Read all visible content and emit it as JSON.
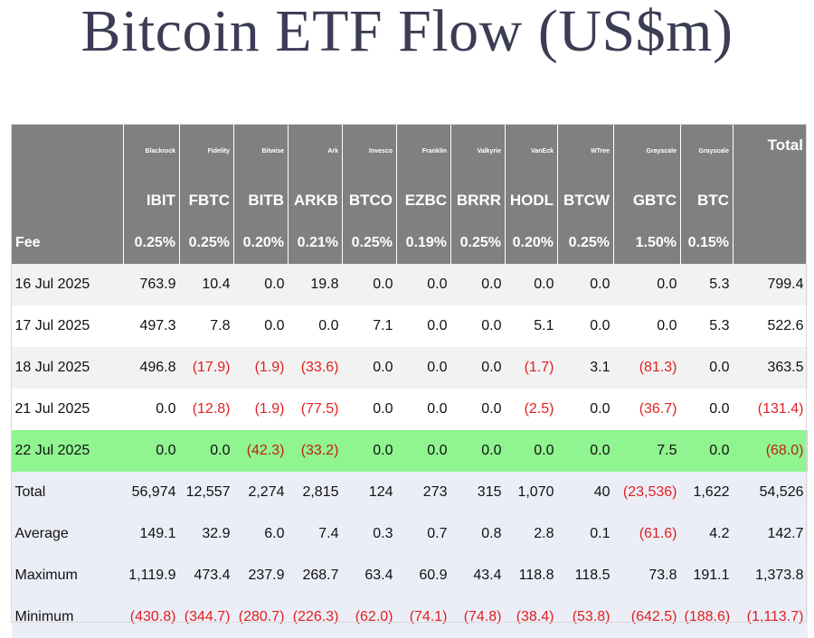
{
  "title": "Bitcoin ETF Flow (US$m)",
  "issuers": [
    "Blackrock",
    "Fidelity",
    "Bitwise",
    "Ark",
    "Invesco",
    "Franklin",
    "Valkyrie",
    "VanEck",
    "WTree",
    "Grayscale",
    "Grayscale"
  ],
  "total_label": "Total",
  "tickers": [
    "IBIT",
    "FBTC",
    "BITB",
    "ARKB",
    "BTCO",
    "EZBC",
    "BRRR",
    "HODL",
    "BTCW",
    "GBTC",
    "BTC"
  ],
  "fee_label": "Fee",
  "fees": [
    "0.25%",
    "0.25%",
    "0.20%",
    "0.21%",
    "0.25%",
    "0.19%",
    "0.25%",
    "0.20%",
    "0.25%",
    "1.50%",
    "0.15%"
  ],
  "rows": [
    {
      "label": "16 Jul 2025",
      "values": [
        "763.9",
        "10.4",
        "0.0",
        "19.8",
        "0.0",
        "0.0",
        "0.0",
        "0.0",
        "0.0",
        "0.0",
        "5.3",
        "799.4"
      ]
    },
    {
      "label": "17 Jul 2025",
      "values": [
        "497.3",
        "7.8",
        "0.0",
        "0.0",
        "7.1",
        "0.0",
        "0.0",
        "5.1",
        "0.0",
        "0.0",
        "5.3",
        "522.6"
      ]
    },
    {
      "label": "18 Jul 2025",
      "values": [
        "496.8",
        "(17.9)",
        "(1.9)",
        "(33.6)",
        "0.0",
        "0.0",
        "0.0",
        "(1.7)",
        "3.1",
        "(81.3)",
        "0.0",
        "363.5"
      ]
    },
    {
      "label": "21 Jul 2025",
      "values": [
        "0.0",
        "(12.8)",
        "(1.9)",
        "(77.5)",
        "0.0",
        "0.0",
        "0.0",
        "(2.5)",
        "0.0",
        "(36.7)",
        "0.0",
        "(131.4)"
      ]
    },
    {
      "label": "22 Jul 2025",
      "values": [
        "0.0",
        "0.0",
        "(42.3)",
        "(33.2)",
        "0.0",
        "0.0",
        "0.0",
        "0.0",
        "0.0",
        "7.5",
        "0.0",
        "(68.0)"
      ]
    }
  ],
  "stats": [
    {
      "label": "Total",
      "values": [
        "56,974",
        "12,557",
        "2,274",
        "2,815",
        "124",
        "273",
        "315",
        "1,070",
        "40",
        "(23,536)",
        "1,622",
        "54,526"
      ]
    },
    {
      "label": "Average",
      "values": [
        "149.1",
        "32.9",
        "6.0",
        "7.4",
        "0.3",
        "0.7",
        "0.8",
        "2.8",
        "0.1",
        "(61.6)",
        "4.2",
        "142.7"
      ]
    },
    {
      "label": "Maximum",
      "values": [
        "1,119.9",
        "473.4",
        "237.9",
        "268.7",
        "63.4",
        "60.9",
        "43.4",
        "118.8",
        "118.5",
        "73.8",
        "191.1",
        "1,373.8"
      ]
    },
    {
      "label": "Minimum",
      "values": [
        "(430.8)",
        "(344.7)",
        "(280.7)",
        "(226.3)",
        "(62.0)",
        "(74.1)",
        "(74.8)",
        "(38.4)",
        "(53.8)",
        "(642.5)",
        "(188.6)",
        "(1,113.7)"
      ]
    }
  ],
  "colors": {
    "header_bg": "#808080",
    "highlight_row": "#90f490",
    "negative": "#e02020",
    "stats_bg": "#eceef7",
    "title": "#3b3d55"
  }
}
